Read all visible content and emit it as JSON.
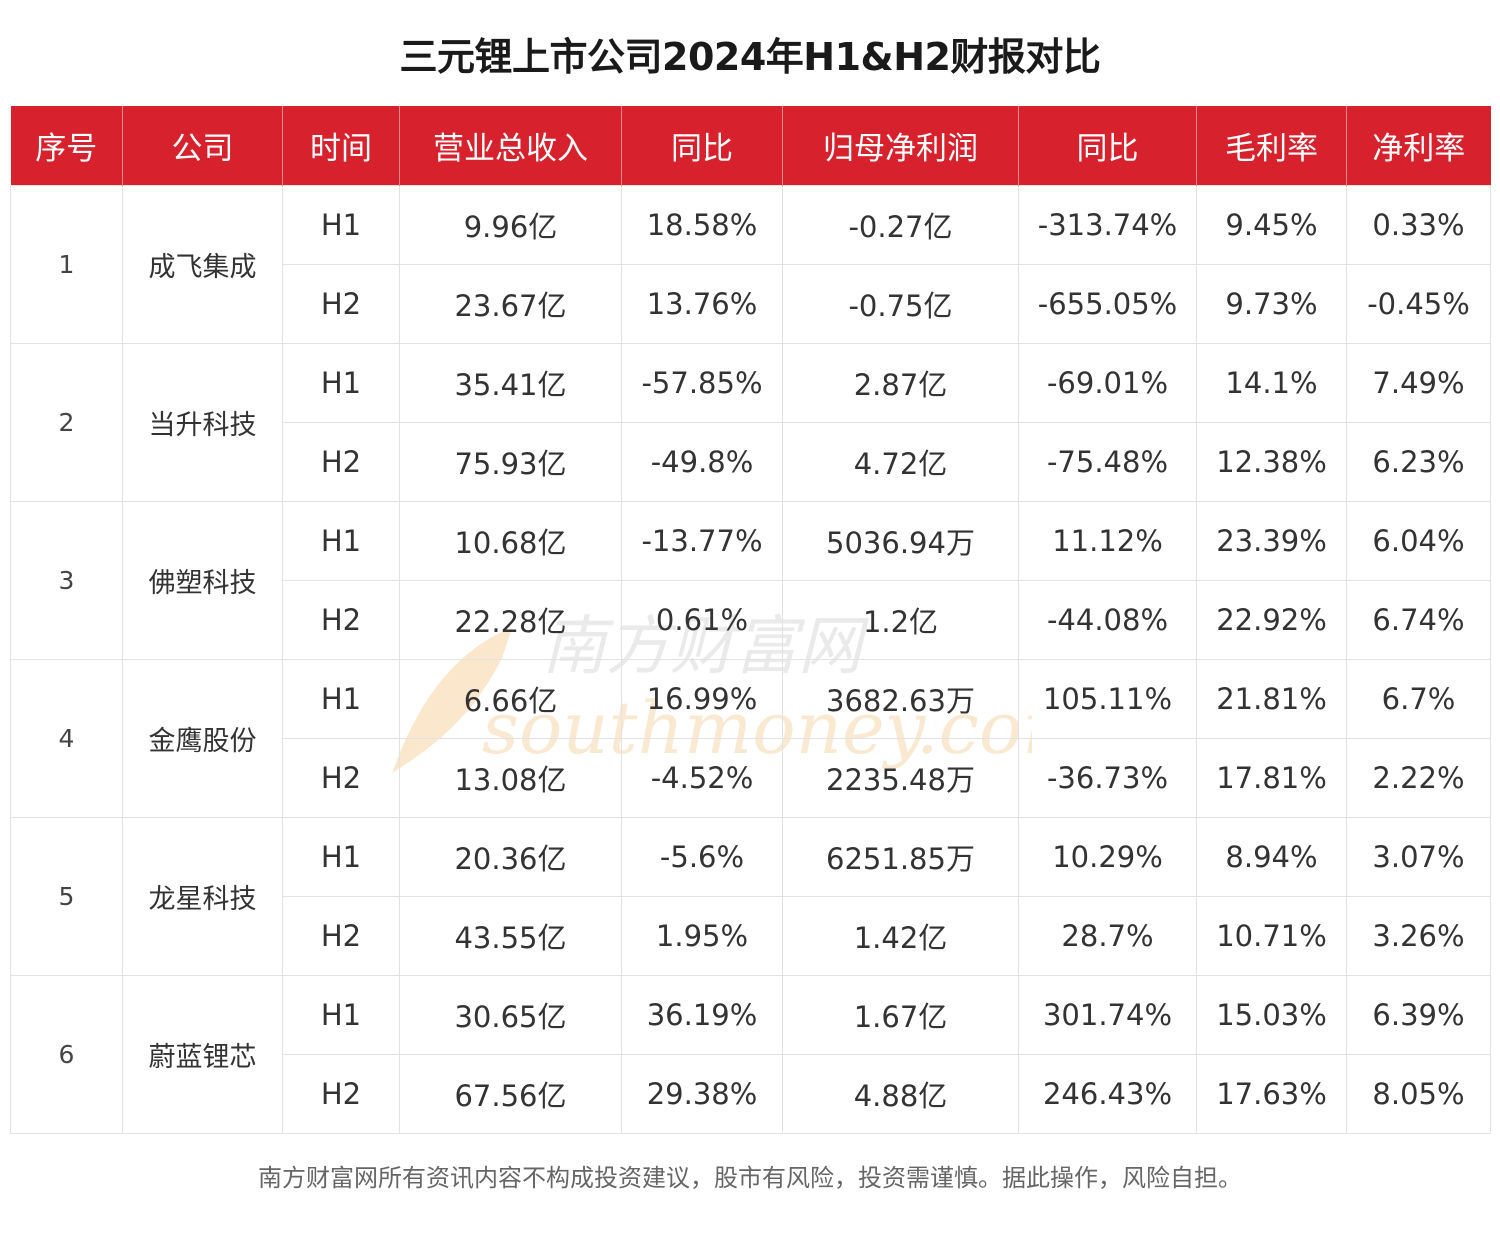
{
  "title": "三元锂上市公司2024年H1&H2财报对比",
  "columns": [
    "序号",
    "公司",
    "时间",
    "营业总收入",
    "同比",
    "归母净利润",
    "同比",
    "毛利率",
    "净利率"
  ],
  "chart_data": {
    "type": "table",
    "title": "三元锂上市公司2024年H1&H2财报对比",
    "columns": [
      "序号",
      "公司",
      "时间",
      "营业总收入",
      "同比",
      "归母净利润",
      "同比",
      "毛利率",
      "净利率"
    ],
    "companies": [
      {
        "seq": "1",
        "name": "成飞集成",
        "rows": [
          {
            "period": "H1",
            "revenue": "9.96亿",
            "revenue_yoy": "18.58%",
            "net_profit": "-0.27亿",
            "profit_yoy": "-313.74%",
            "gross_margin": "9.45%",
            "net_margin": "0.33%"
          },
          {
            "period": "H2",
            "revenue": "23.67亿",
            "revenue_yoy": "13.76%",
            "net_profit": "-0.75亿",
            "profit_yoy": "-655.05%",
            "gross_margin": "9.73%",
            "net_margin": "-0.45%"
          }
        ]
      },
      {
        "seq": "2",
        "name": "当升科技",
        "rows": [
          {
            "period": "H1",
            "revenue": "35.41亿",
            "revenue_yoy": "-57.85%",
            "net_profit": "2.87亿",
            "profit_yoy": "-69.01%",
            "gross_margin": "14.1%",
            "net_margin": "7.49%"
          },
          {
            "period": "H2",
            "revenue": "75.93亿",
            "revenue_yoy": "-49.8%",
            "net_profit": "4.72亿",
            "profit_yoy": "-75.48%",
            "gross_margin": "12.38%",
            "net_margin": "6.23%"
          }
        ]
      },
      {
        "seq": "3",
        "name": "佛塑科技",
        "rows": [
          {
            "period": "H1",
            "revenue": "10.68亿",
            "revenue_yoy": "-13.77%",
            "net_profit": "5036.94万",
            "profit_yoy": "11.12%",
            "gross_margin": "23.39%",
            "net_margin": "6.04%"
          },
          {
            "period": "H2",
            "revenue": "22.28亿",
            "revenue_yoy": "0.61%",
            "net_profit": "1.2亿",
            "profit_yoy": "-44.08%",
            "gross_margin": "22.92%",
            "net_margin": "6.74%"
          }
        ]
      },
      {
        "seq": "4",
        "name": "金鹰股份",
        "rows": [
          {
            "period": "H1",
            "revenue": "6.66亿",
            "revenue_yoy": "16.99%",
            "net_profit": "3682.63万",
            "profit_yoy": "105.11%",
            "gross_margin": "21.81%",
            "net_margin": "6.7%"
          },
          {
            "period": "H2",
            "revenue": "13.08亿",
            "revenue_yoy": "-4.52%",
            "net_profit": "2235.48万",
            "profit_yoy": "-36.73%",
            "gross_margin": "17.81%",
            "net_margin": "2.22%"
          }
        ]
      },
      {
        "seq": "5",
        "name": "龙星科技",
        "rows": [
          {
            "period": "H1",
            "revenue": "20.36亿",
            "revenue_yoy": "-5.6%",
            "net_profit": "6251.85万",
            "profit_yoy": "10.29%",
            "gross_margin": "8.94%",
            "net_margin": "3.07%"
          },
          {
            "period": "H2",
            "revenue": "43.55亿",
            "revenue_yoy": "1.95%",
            "net_profit": "1.42亿",
            "profit_yoy": "28.7%",
            "gross_margin": "10.71%",
            "net_margin": "3.26%"
          }
        ]
      },
      {
        "seq": "6",
        "name": "蔚蓝锂芯",
        "rows": [
          {
            "period": "H1",
            "revenue": "30.65亿",
            "revenue_yoy": "36.19%",
            "net_profit": "1.67亿",
            "profit_yoy": "301.74%",
            "gross_margin": "15.03%",
            "net_margin": "6.39%"
          },
          {
            "period": "H2",
            "revenue": "67.56亿",
            "revenue_yoy": "29.38%",
            "net_profit": "4.88亿",
            "profit_yoy": "246.43%",
            "gross_margin": "17.63%",
            "net_margin": "8.05%"
          }
        ]
      }
    ]
  },
  "watermark": {
    "cn": "南方财富网",
    "en": "southmoney.com"
  },
  "footer_note": "南方财富网所有资讯内容不构成投资建议，股市有风险，投资需谨慎。据此操作，风险自担。",
  "colors": {
    "header_bg": "#d7222e",
    "header_text": "#ffffff",
    "grid": "#e2e2e2",
    "watermark": "#f5c98a"
  }
}
